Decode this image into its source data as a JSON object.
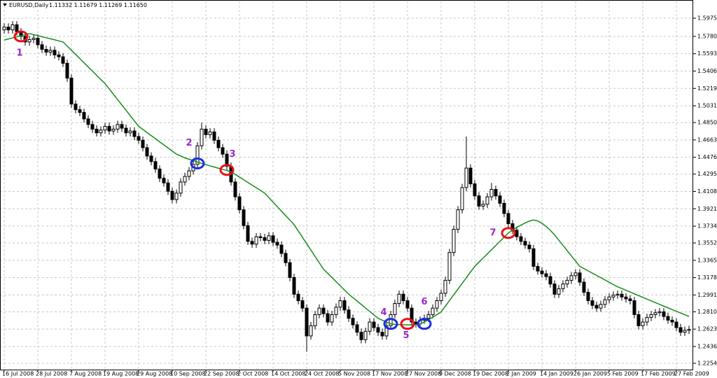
{
  "chart_data": {
    "type": "candlestick",
    "title": "EURUSD,Daily",
    "quote": "1.11332 1.11679 1.11269 1.11650",
    "categories": [
      "16 Jul 2008",
      null,
      null,
      null,
      null,
      null,
      null,
      null,
      "28 Jul 2008",
      null,
      null,
      null,
      null,
      null,
      null,
      null,
      "7 Aug 2008",
      null,
      null,
      null,
      null,
      null,
      null,
      null,
      "19 Aug 2008",
      null,
      null,
      null,
      null,
      null,
      null,
      null,
      "29 Aug 2008",
      null,
      null,
      null,
      null,
      null,
      null,
      null,
      "10 Sep 2008",
      null,
      null,
      null,
      null,
      null,
      null,
      null,
      "22 Sep 2008",
      null,
      null,
      null,
      null,
      null,
      null,
      null,
      "2 Oct 2008",
      null,
      null,
      null,
      null,
      null,
      null,
      null,
      "14 Oct 2008",
      null,
      null,
      null,
      null,
      null,
      null,
      null,
      "24 Oct 2008",
      null,
      null,
      null,
      null,
      null,
      null,
      null,
      "5 Nov 2008",
      null,
      null,
      null,
      null,
      null,
      null,
      null,
      "17 Nov 2008",
      null,
      null,
      null,
      null,
      null,
      null,
      null,
      "27 Nov 2008",
      null,
      null,
      null,
      null,
      null,
      null,
      null,
      "9 Dec 2008",
      null,
      null,
      null,
      null,
      null,
      null,
      null,
      "19 Dec 2008",
      null,
      null,
      null,
      null,
      null,
      null,
      null,
      "2 Jan 2009",
      null,
      null,
      null,
      null,
      null,
      null,
      null,
      "14 Jan 2009",
      null,
      null,
      null,
      null,
      null,
      null,
      null,
      "26 Jan 2009",
      null,
      null,
      null,
      null,
      null,
      null,
      null,
      "5 Feb 2009",
      null,
      null,
      null,
      null,
      null,
      null,
      null,
      "17 Feb 2009",
      null,
      null,
      null,
      null,
      null,
      null,
      null,
      "27 Feb 2009",
      null,
      null,
      null
    ],
    "open": [
      1.585,
      1.588,
      1.585,
      1.5905,
      1.583,
      1.578,
      1.572,
      1.5745,
      1.576,
      1.569,
      1.564,
      1.561,
      1.563,
      1.558,
      1.556,
      1.549,
      1.533,
      1.505,
      1.499,
      1.496,
      1.489,
      1.483,
      1.478,
      1.474,
      1.477,
      1.481,
      1.476,
      1.478,
      1.483,
      1.479,
      1.474,
      1.476,
      1.47,
      1.466,
      1.458,
      1.449,
      1.443,
      1.435,
      1.425,
      1.42,
      1.411,
      1.402,
      1.409,
      1.421,
      1.427,
      1.433,
      1.44,
      1.46,
      1.478,
      1.472,
      1.475,
      1.466,
      1.458,
      1.451,
      1.438,
      1.421,
      1.405,
      1.391,
      1.374,
      1.357,
      1.354,
      1.362,
      1.361,
      1.358,
      1.363,
      1.356,
      1.353,
      1.344,
      1.334,
      1.318,
      1.3,
      1.293,
      1.285,
      1.255,
      1.266,
      1.278,
      1.285,
      1.279,
      1.27,
      1.278,
      1.286,
      1.293,
      1.283,
      1.274,
      1.267,
      1.259,
      1.251,
      1.26,
      1.27,
      1.264,
      1.259,
      1.255,
      1.266,
      1.278,
      1.29,
      1.3,
      1.293,
      1.285,
      1.27,
      1.268,
      1.272,
      1.274,
      1.278,
      1.285,
      1.293,
      1.301,
      1.315,
      1.345,
      1.37,
      1.391,
      1.415,
      1.436,
      1.419,
      1.406,
      1.395,
      1.397,
      1.405,
      1.413,
      1.406,
      1.398,
      1.387,
      1.376,
      1.369,
      1.362,
      1.357,
      1.353,
      1.349,
      1.33,
      1.325,
      1.322,
      1.319,
      1.311,
      1.3,
      1.306,
      1.311,
      1.315,
      1.32,
      1.323,
      1.313,
      1.302,
      1.293,
      1.288,
      1.285,
      1.289,
      1.294,
      1.297,
      1.299,
      1.3,
      1.297,
      1.295,
      1.293,
      1.278,
      1.266,
      1.27,
      1.275,
      1.278,
      1.28,
      1.281,
      1.276,
      1.272,
      1.27,
      1.264,
      1.259,
      1.261
    ],
    "high": [
      1.592,
      1.592,
      1.5945,
      1.5945,
      1.587,
      1.582,
      1.5785,
      1.58,
      1.58,
      1.573,
      1.568,
      1.567,
      1.567,
      1.562,
      1.56,
      1.553,
      1.537,
      1.509,
      1.503,
      1.5,
      1.493,
      1.487,
      1.482,
      1.481,
      1.485,
      1.485,
      1.482,
      1.487,
      1.487,
      1.483,
      1.48,
      1.48,
      1.474,
      1.47,
      1.462,
      1.453,
      1.447,
      1.439,
      1.429,
      1.424,
      1.415,
      1.413,
      1.425,
      1.431,
      1.437,
      1.444,
      1.464,
      1.485,
      1.482,
      1.479,
      1.479,
      1.47,
      1.462,
      1.455,
      1.442,
      1.425,
      1.409,
      1.395,
      1.378,
      1.361,
      1.366,
      1.366,
      1.365,
      1.367,
      1.367,
      1.36,
      1.357,
      1.348,
      1.338,
      1.322,
      1.304,
      1.297,
      1.289,
      1.27,
      1.282,
      1.289,
      1.289,
      1.283,
      1.282,
      1.29,
      1.297,
      1.297,
      1.287,
      1.278,
      1.271,
      1.263,
      1.264,
      1.274,
      1.274,
      1.268,
      1.263,
      1.27,
      1.282,
      1.294,
      1.304,
      1.304,
      1.297,
      1.289,
      1.274,
      1.276,
      1.278,
      1.282,
      1.289,
      1.297,
      1.305,
      1.319,
      1.349,
      1.374,
      1.395,
      1.419,
      1.47,
      1.44,
      1.423,
      1.41,
      1.401,
      1.409,
      1.42,
      1.417,
      1.41,
      1.402,
      1.391,
      1.38,
      1.373,
      1.366,
      1.361,
      1.357,
      1.353,
      1.334,
      1.329,
      1.326,
      1.323,
      1.315,
      1.31,
      1.315,
      1.319,
      1.324,
      1.327,
      1.327,
      1.317,
      1.306,
      1.297,
      1.292,
      1.293,
      1.298,
      1.301,
      1.303,
      1.304,
      1.304,
      1.301,
      1.299,
      1.297,
      1.282,
      1.274,
      1.279,
      1.282,
      1.284,
      1.285,
      1.285,
      1.28,
      1.276,
      1.274,
      1.268,
      1.265,
      1.266
    ],
    "low": [
      1.581,
      1.581,
      1.581,
      1.579,
      1.574,
      1.568,
      1.568,
      1.5705,
      1.565,
      1.56,
      1.557,
      1.557,
      1.554,
      1.552,
      1.545,
      1.529,
      1.501,
      1.495,
      1.492,
      1.485,
      1.479,
      1.474,
      1.47,
      1.47,
      1.473,
      1.472,
      1.472,
      1.474,
      1.475,
      1.47,
      1.47,
      1.466,
      1.462,
      1.454,
      1.445,
      1.439,
      1.431,
      1.421,
      1.416,
      1.407,
      1.398,
      1.398,
      1.405,
      1.417,
      1.423,
      1.429,
      1.436,
      1.456,
      1.468,
      1.468,
      1.462,
      1.454,
      1.447,
      1.434,
      1.417,
      1.401,
      1.387,
      1.37,
      1.353,
      1.35,
      1.35,
      1.357,
      1.354,
      1.354,
      1.352,
      1.349,
      1.34,
      1.33,
      1.314,
      1.296,
      1.289,
      1.281,
      1.238,
      1.251,
      1.262,
      1.274,
      1.275,
      1.266,
      1.266,
      1.274,
      1.282,
      1.279,
      1.27,
      1.263,
      1.255,
      1.247,
      1.247,
      1.256,
      1.26,
      1.255,
      1.251,
      1.251,
      1.262,
      1.274,
      1.286,
      1.289,
      1.281,
      1.266,
      1.264,
      1.264,
      1.268,
      1.27,
      1.274,
      1.281,
      1.289,
      1.297,
      1.311,
      1.341,
      1.366,
      1.387,
      1.411,
      1.415,
      1.402,
      1.391,
      1.391,
      1.393,
      1.401,
      1.402,
      1.394,
      1.383,
      1.372,
      1.365,
      1.358,
      1.353,
      1.349,
      1.345,
      1.326,
      1.321,
      1.318,
      1.315,
      1.307,
      1.296,
      1.296,
      1.302,
      1.307,
      1.311,
      1.316,
      1.309,
      1.298,
      1.289,
      1.284,
      1.281,
      1.281,
      1.285,
      1.29,
      1.293,
      1.295,
      1.293,
      1.291,
      1.289,
      1.274,
      1.262,
      1.262,
      1.266,
      1.271,
      1.274,
      1.276,
      1.272,
      1.268,
      1.266,
      1.26,
      1.255,
      1.255,
      1.257
    ],
    "close": [
      1.588,
      1.585,
      1.5905,
      1.583,
      1.578,
      1.572,
      1.5745,
      1.576,
      1.569,
      1.564,
      1.561,
      1.563,
      1.558,
      1.556,
      1.549,
      1.533,
      1.505,
      1.499,
      1.496,
      1.489,
      1.483,
      1.478,
      1.474,
      1.477,
      1.481,
      1.476,
      1.478,
      1.483,
      1.479,
      1.474,
      1.476,
      1.47,
      1.466,
      1.458,
      1.449,
      1.443,
      1.435,
      1.425,
      1.42,
      1.411,
      1.402,
      1.409,
      1.421,
      1.427,
      1.433,
      1.44,
      1.46,
      1.478,
      1.472,
      1.475,
      1.466,
      1.458,
      1.451,
      1.438,
      1.421,
      1.405,
      1.391,
      1.374,
      1.357,
      1.354,
      1.362,
      1.361,
      1.358,
      1.363,
      1.356,
      1.353,
      1.344,
      1.334,
      1.318,
      1.3,
      1.293,
      1.285,
      1.255,
      1.266,
      1.278,
      1.285,
      1.279,
      1.27,
      1.278,
      1.286,
      1.293,
      1.283,
      1.274,
      1.267,
      1.259,
      1.251,
      1.26,
      1.27,
      1.264,
      1.259,
      1.255,
      1.266,
      1.278,
      1.29,
      1.3,
      1.293,
      1.285,
      1.27,
      1.268,
      1.272,
      1.274,
      1.278,
      1.285,
      1.293,
      1.301,
      1.315,
      1.345,
      1.37,
      1.391,
      1.415,
      1.436,
      1.419,
      1.406,
      1.395,
      1.397,
      1.405,
      1.413,
      1.406,
      1.398,
      1.387,
      1.376,
      1.369,
      1.362,
      1.357,
      1.353,
      1.349,
      1.33,
      1.325,
      1.322,
      1.319,
      1.311,
      1.3,
      1.306,
      1.311,
      1.315,
      1.32,
      1.323,
      1.313,
      1.302,
      1.293,
      1.288,
      1.285,
      1.289,
      1.294,
      1.297,
      1.299,
      1.3,
      1.297,
      1.295,
      1.293,
      1.278,
      1.266,
      1.27,
      1.275,
      1.278,
      1.28,
      1.281,
      1.276,
      1.272,
      1.27,
      1.264,
      1.259,
      1.261,
      1.262
    ],
    "series": [
      {
        "color": "#1a8c1a",
        "values": [
          1.574,
          1.5752,
          1.5763,
          1.5775,
          1.5787,
          1.5798,
          1.581,
          1.5799,
          1.5788,
          1.5776,
          1.5765,
          1.5754,
          1.5743,
          1.5731,
          1.572,
          1.5675,
          1.563,
          1.5585,
          1.554,
          1.5495,
          1.545,
          1.5405,
          1.536,
          1.5315,
          1.527,
          1.5213,
          1.5155,
          1.5098,
          1.504,
          1.4983,
          1.4925,
          1.4868,
          1.481,
          1.4777,
          1.4743,
          1.471,
          1.4677,
          1.4643,
          1.461,
          1.4577,
          1.4543,
          1.451,
          1.449,
          1.447,
          1.4455,
          1.444,
          1.4425,
          1.441,
          1.4397,
          1.4384,
          1.4371,
          1.4358,
          1.4345,
          1.4333,
          1.432,
          1.4291,
          1.4263,
          1.4234,
          1.4205,
          1.4176,
          1.4148,
          1.4119,
          1.409,
          1.4041,
          1.3993,
          1.3944,
          1.3896,
          1.3847,
          1.3799,
          1.375,
          1.3681,
          1.3613,
          1.3544,
          1.3476,
          1.3407,
          1.3339,
          1.327,
          1.3225,
          1.318,
          1.3135,
          1.309,
          1.3045,
          1.3,
          1.2963,
          1.2926,
          1.2889,
          1.2851,
          1.2814,
          1.2777,
          1.274,
          1.272,
          1.27,
          1.268,
          1.2675,
          1.2672,
          1.267,
          1.267,
          1.267,
          1.2672,
          1.268,
          1.27,
          1.2725,
          1.2752,
          1.278,
          1.281,
          1.2871,
          1.2933,
          1.2994,
          1.3055,
          1.3116,
          1.3178,
          1.3239,
          1.33,
          1.3345,
          1.339,
          1.3435,
          1.348,
          1.3525,
          1.357,
          1.3615,
          1.366,
          1.369,
          1.372,
          1.3745,
          1.3768,
          1.3788,
          1.38,
          1.379,
          1.3765,
          1.373,
          1.3688,
          1.364,
          1.3583,
          1.3527,
          1.347,
          1.3413,
          1.3357,
          1.33,
          1.3276,
          1.3251,
          1.3227,
          1.3202,
          1.3178,
          1.3153,
          1.3129,
          1.3104,
          1.308,
          1.3061,
          1.3042,
          1.3023,
          1.3004,
          1.2985,
          1.2966,
          1.2947,
          1.2928,
          1.2909,
          1.289,
          1.2871,
          1.2853,
          1.2834,
          1.2816,
          1.2797,
          1.2779,
          1.276
        ]
      }
    ],
    "ylim": [
      1.2187,
      1.6157
    ],
    "yticks": [
      1.59755,
      {
        "value": 1.578,
        "label": "1.57800"
      },
      {
        "value": 1.5593,
        "label": "1.55930"
      },
      {
        "value": 1.5406,
        "label": "1.54060"
      },
      {
        "value": 1.5219,
        "label": "1.52190"
      },
      1.50315,
      1.48505,
      1.46635,
      1.44765,
      {
        "value": 1.4295,
        "label": "1.42950"
      },
      {
        "value": 1.4108,
        "label": "1.41080"
      },
      {
        "value": 1.3921,
        "label": "1.39210"
      },
      {
        "value": 1.3734,
        "label": "1.37340"
      },
      1.35525,
      1.33655,
      1.31785,
      1.29915,
      {
        "value": 1.281,
        "label": "1.28100"
      },
      1.26235,
      {
        "value": 1.2436,
        "label": "1.24360"
      },
      1.22545
    ],
    "grid": true,
    "bull_color": "#ffffff",
    "bear_color": "#000000",
    "annotation_label_color": "#9b27c8",
    "annotations": [
      {
        "label": "1",
        "index": 4,
        "value": 1.578,
        "color": "#e8101a"
      },
      {
        "label": "2",
        "index": 46,
        "value": 1.441,
        "color": "#1c2ee0"
      },
      {
        "label": "3",
        "index": 53,
        "value": 1.434,
        "color": "#e8101a"
      },
      {
        "label": "4",
        "index": 92,
        "value": 1.268,
        "color": "#1c2ee0"
      },
      {
        "label": "5",
        "index": 96,
        "value": 1.268,
        "color": "#e8101a"
      },
      {
        "label": "6",
        "index": 100,
        "value": 1.268,
        "color": "#1c2ee0"
      },
      {
        "label": "7",
        "index": 120,
        "value": 1.366,
        "color": "#e8101a"
      }
    ]
  }
}
